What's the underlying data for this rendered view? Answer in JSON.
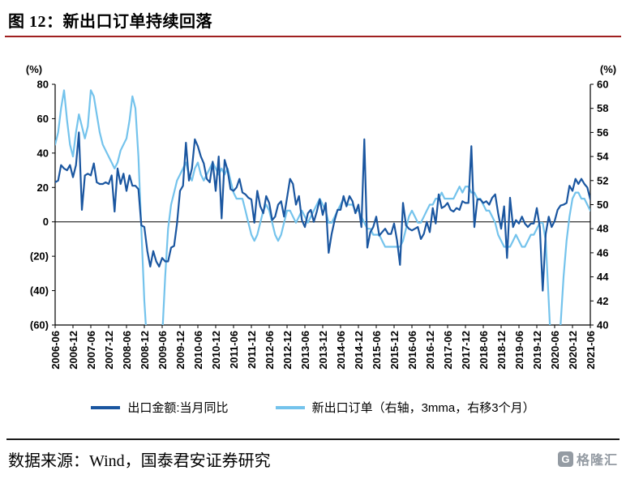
{
  "page": {
    "title": "图 12：新出口订单持续回落",
    "source_text": "数据来源：Wind，国泰君安证券研究",
    "watermark": {
      "icon": "G",
      "brand": "格隆汇"
    }
  },
  "colors": {
    "series_export": "#1a56a0",
    "series_orders": "#74c3ec",
    "negative_tick": "#ff0000",
    "title_rule": "#a02020",
    "axis": "#000000"
  },
  "chart_data": {
    "type": "line",
    "title": "新出口订单持续回落",
    "grid": false,
    "legend_position": "bottom",
    "x_start": "2006-06",
    "x_interval_months": 1,
    "x_tick_labels": [
      "2006-06",
      "2006-12",
      "2007-06",
      "2007-12",
      "2008-06",
      "2008-12",
      "2009-06",
      "2009-12",
      "2010-06",
      "2010-12",
      "2011-06",
      "2011-12",
      "2012-06",
      "2012-12",
      "2013-06",
      "2013-12",
      "2014-06",
      "2014-12",
      "2015-06",
      "2015-12",
      "2016-06",
      "2016-12",
      "2017-06",
      "2017-12",
      "2018-06",
      "2018-12",
      "2019-06",
      "2019-12",
      "2020-06",
      "2020-12",
      "2021-06"
    ],
    "left_axis": {
      "label": "(%)",
      "min": -60,
      "max": 80,
      "ticks": [
        80,
        60,
        40,
        20,
        0,
        -20,
        -40,
        -60
      ],
      "negative_style": "red-parentheses"
    },
    "right_axis": {
      "label": "(%)",
      "min": 40,
      "max": 60,
      "ticks": [
        60,
        58,
        56,
        54,
        52,
        50,
        48,
        46,
        44,
        42,
        40
      ]
    },
    "series": [
      {
        "name": "出口金额:当月同比",
        "axis": "left",
        "color": "#1a56a0",
        "values": [
          23,
          24,
          33,
          31,
          30,
          33,
          26,
          33,
          52,
          7,
          27,
          28,
          27,
          34,
          23,
          22,
          22,
          23,
          22,
          27,
          6,
          31,
          22,
          28,
          18,
          27,
          21,
          21,
          19,
          -2,
          -3,
          -17,
          -26,
          -17,
          -23,
          -26,
          -21,
          -23,
          -23,
          -15,
          -14,
          -1,
          18,
          21,
          46,
          24,
          31,
          48,
          44,
          38,
          34,
          25,
          23,
          35,
          18,
          38,
          2,
          36,
          30,
          19,
          18,
          20,
          25,
          17,
          16,
          14,
          13,
          -0.5,
          18,
          9,
          5,
          15,
          11,
          1,
          3,
          10,
          12,
          3,
          14,
          25,
          22,
          10,
          15,
          1,
          -3,
          5,
          7,
          0,
          6,
          13,
          4,
          11,
          -18,
          -7,
          1,
          7,
          7,
          15,
          9,
          15,
          12,
          5,
          10,
          -3,
          48,
          -15,
          -6,
          -3,
          3,
          -8,
          -6,
          -4,
          -7,
          -7,
          -1,
          -11,
          -25,
          11,
          -2,
          -4,
          -5,
          -4,
          -3,
          -10,
          -7,
          0,
          -6,
          8,
          -1,
          16,
          8,
          9,
          11,
          7,
          6,
          8,
          7,
          12,
          11,
          11,
          44,
          -3,
          13,
          13,
          11,
          12,
          10,
          14,
          16,
          5,
          -4,
          9,
          -21,
          14,
          -3,
          1,
          -1,
          3,
          -1,
          -3,
          -1,
          -1,
          8,
          -3,
          -40,
          -7,
          3,
          -3,
          0.5,
          7,
          9.5,
          10,
          11,
          21,
          18,
          25,
          22,
          25,
          22,
          20,
          13
        ]
      },
      {
        "name": "新出口订单（右轴，3mma，右移3个月）",
        "axis": "right",
        "color": "#74c3ec",
        "values": [
          55,
          56,
          58,
          59.5,
          57,
          55,
          54,
          56,
          57.5,
          56.5,
          55.5,
          56.5,
          59.5,
          59,
          57.5,
          56,
          55,
          54.5,
          54,
          53.5,
          53,
          53.5,
          54.5,
          55,
          55.5,
          57,
          59,
          58,
          54,
          48,
          42,
          38,
          33,
          31,
          32,
          35,
          39,
          44,
          48,
          50,
          51,
          52,
          52.5,
          53,
          53.5,
          52.5,
          52,
          53,
          53.5,
          52.5,
          52,
          52.5,
          53,
          53.5,
          53,
          52.5,
          53,
          52.5,
          53,
          52,
          51,
          50.5,
          50.5,
          50.5,
          49.5,
          48.5,
          47.5,
          47,
          47.5,
          48.5,
          49.5,
          50,
          49.5,
          48.5,
          47.5,
          47,
          47.5,
          48.5,
          49.5,
          49.5,
          49,
          48.5,
          49,
          49.5,
          49,
          48.5,
          49,
          49.5,
          50,
          50.5,
          50,
          49.5,
          48.5,
          48.5,
          49,
          49.5,
          50,
          50.5,
          50,
          50,
          50,
          49.5,
          49.5,
          49,
          48.5,
          48,
          48,
          47.5,
          47.5,
          47.5,
          47,
          46.5,
          46.5,
          46.5,
          46.5,
          46.5,
          46.5,
          47,
          48,
          49,
          49.5,
          49,
          48.5,
          48.5,
          49,
          49.5,
          50,
          50,
          50.5,
          50.5,
          51,
          50.5,
          50.5,
          50.5,
          50.5,
          51,
          51.5,
          51,
          51.5,
          51.5,
          51,
          51,
          50.5,
          50.5,
          50,
          49.5,
          49.5,
          49,
          48.5,
          47.5,
          47,
          46.5,
          46.5,
          46.5,
          47,
          47.5,
          47,
          46.5,
          46.5,
          47,
          47.5,
          47.5,
          48,
          48.5,
          48.5,
          47,
          42,
          37,
          34,
          36,
          40,
          44,
          47,
          49,
          50.5,
          51,
          51,
          50.5,
          50.5,
          50,
          49.5
        ]
      }
    ]
  }
}
